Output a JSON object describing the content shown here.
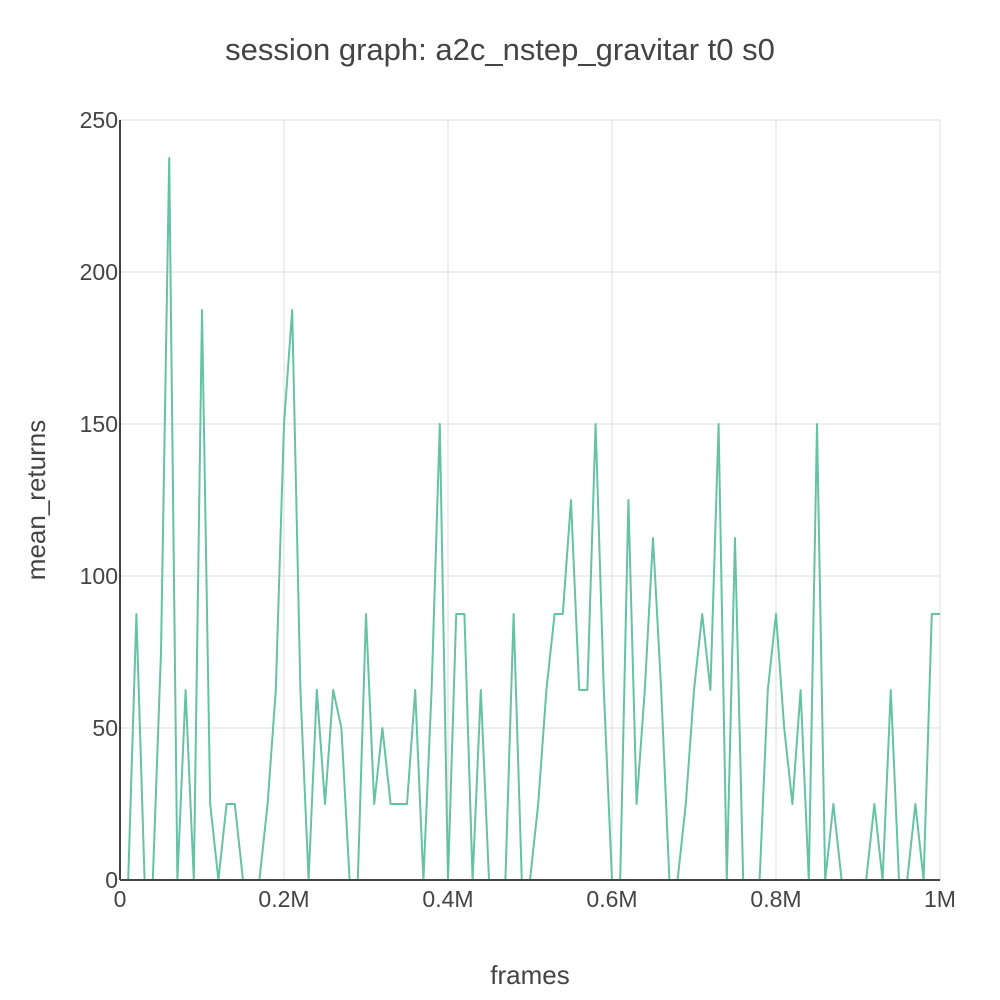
{
  "chart_data": {
    "type": "line",
    "title": "session graph: a2c_nstep_gravitar t0 s0",
    "xlabel": "frames",
    "ylabel": "mean_returns",
    "xlim": [
      0,
      1000000
    ],
    "ylim": [
      0,
      250
    ],
    "x_ticks": [
      {
        "value": 0,
        "label": "0"
      },
      {
        "value": 200000,
        "label": "0.2M"
      },
      {
        "value": 400000,
        "label": "0.4M"
      },
      {
        "value": 600000,
        "label": "0.6M"
      },
      {
        "value": 800000,
        "label": "0.8M"
      },
      {
        "value": 1000000,
        "label": "1M"
      }
    ],
    "y_ticks": [
      {
        "value": 0,
        "label": "0"
      },
      {
        "value": 50,
        "label": "50"
      },
      {
        "value": 100,
        "label": "100"
      },
      {
        "value": 150,
        "label": "150"
      },
      {
        "value": 200,
        "label": "200"
      },
      {
        "value": 250,
        "label": "250"
      }
    ],
    "grid": true,
    "color": "#66c2a5",
    "series": [
      {
        "x": [
          10000,
          20000,
          30000,
          40000,
          50000,
          60000,
          70000,
          80000,
          90000,
          100000,
          110000,
          120000,
          130000,
          140000,
          150000,
          160000,
          170000,
          180000,
          190000,
          200000,
          210000,
          220000,
          230000,
          240000,
          250000,
          260000,
          270000,
          280000,
          290000,
          300000,
          310000,
          320000,
          330000,
          340000,
          350000,
          360000,
          370000,
          380000,
          390000,
          400000,
          410000,
          420000,
          430000,
          440000,
          450000,
          460000,
          470000,
          480000,
          490000,
          500000,
          510000,
          520000,
          530000,
          540000,
          550000,
          560000,
          570000,
          580000,
          590000,
          600000,
          610000,
          620000,
          630000,
          640000,
          650000,
          660000,
          670000,
          680000,
          690000,
          700000,
          710000,
          720000,
          730000,
          740000,
          750000,
          760000,
          770000,
          780000,
          790000,
          800000,
          810000,
          820000,
          830000,
          840000,
          850000,
          860000,
          870000,
          880000,
          890000,
          900000,
          910000,
          920000,
          930000,
          940000,
          950000,
          960000,
          970000,
          980000,
          990000,
          1000000
        ],
        "values": [
          0,
          87.5,
          0,
          0,
          75,
          237.5,
          0,
          62.5,
          0,
          187.5,
          25,
          0,
          25,
          25,
          0,
          0,
          0,
          25,
          62.5,
          150,
          187.5,
          62.5,
          0,
          62.5,
          25,
          62.5,
          50,
          0,
          0,
          87.5,
          25,
          50,
          25,
          25,
          25,
          62.5,
          0,
          62.5,
          150,
          0,
          87.5,
          87.5,
          0,
          62.5,
          0,
          0,
          0,
          87.5,
          0,
          0,
          25,
          62.5,
          87.5,
          87.5,
          125,
          62.5,
          62.5,
          150,
          62.5,
          0,
          0,
          125,
          25,
          62.5,
          112.5,
          62.5,
          0,
          0,
          25,
          62.5,
          87.5,
          62.5,
          150,
          0,
          112.5,
          0,
          0,
          0,
          62.5,
          87.5,
          50,
          25,
          62.5,
          0,
          150,
          0,
          25,
          0,
          0,
          0,
          0,
          25,
          0,
          62.5,
          0,
          0,
          25,
          0,
          87.5,
          87.5
        ]
      }
    ]
  }
}
